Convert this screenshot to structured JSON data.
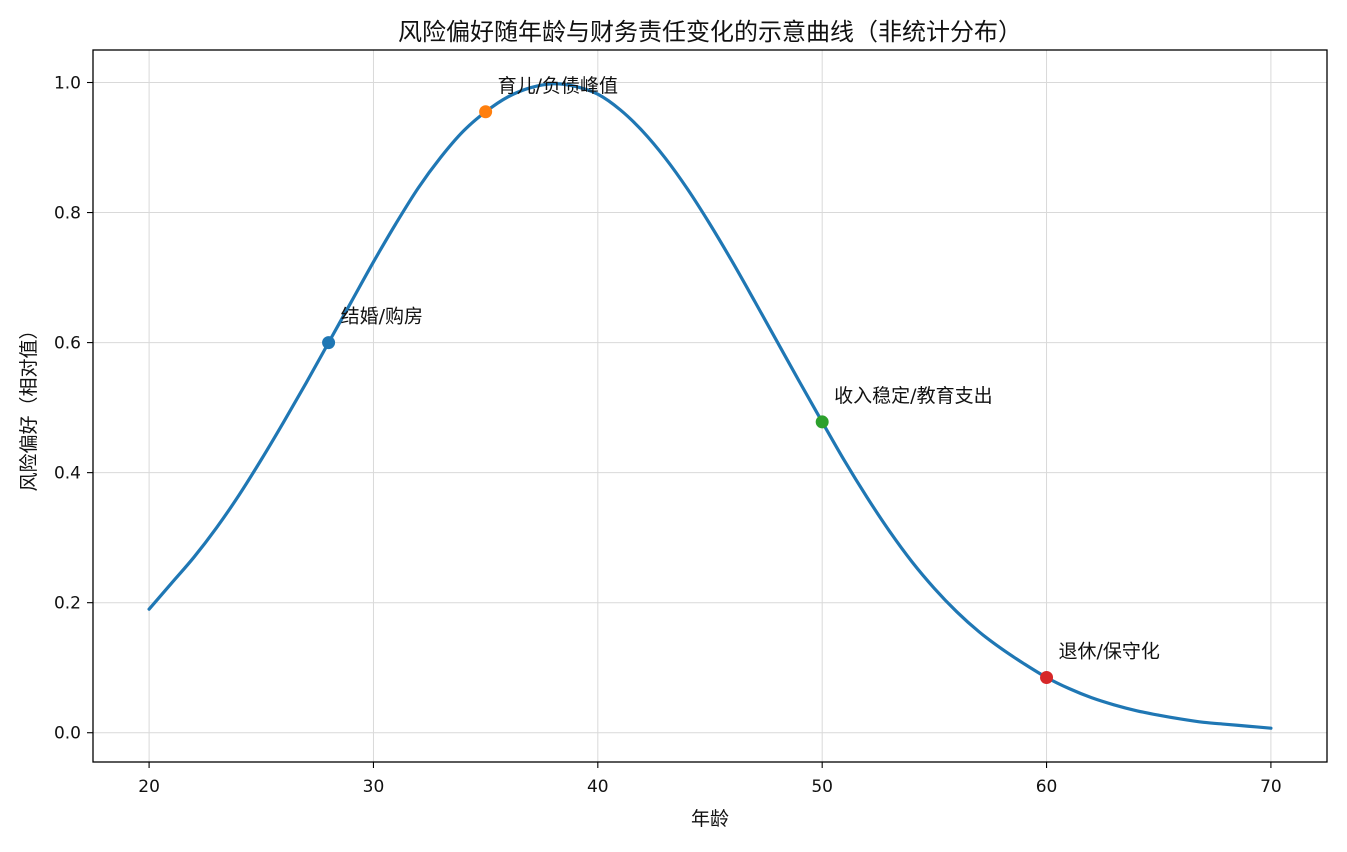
{
  "chart_data": {
    "type": "line",
    "title": "风险偏好随年龄与财务责任变化的示意曲线（非统计分布）",
    "xlabel": "年龄",
    "ylabel": "风险偏好（相对值）",
    "xlim": [
      17.5,
      72.5
    ],
    "ylim": [
      -0.045,
      1.05
    ],
    "xticks": [
      20,
      30,
      40,
      50,
      60,
      70
    ],
    "xtick_labels": [
      "20",
      "30",
      "40",
      "50",
      "60",
      "70"
    ],
    "yticks": [
      0.0,
      0.2,
      0.4,
      0.6,
      0.8,
      1.0
    ],
    "ytick_labels": [
      "0.0",
      "0.2",
      "0.4",
      "0.6",
      "0.8",
      "1.0"
    ],
    "grid": true,
    "series": [
      {
        "color": "#1f77b4",
        "x": [
          20,
          21,
          22,
          23,
          24,
          25,
          26,
          27,
          28,
          29,
          30,
          31,
          32,
          33,
          34,
          35,
          36,
          37,
          38,
          39,
          40,
          41,
          42,
          43,
          44,
          45,
          46,
          47,
          48,
          49,
          50,
          51,
          52,
          53,
          54,
          55,
          56,
          57,
          58,
          59,
          60,
          61,
          62,
          63,
          64,
          65,
          66,
          67,
          68,
          69,
          70
        ],
        "y": [
          0.19,
          0.23,
          0.27,
          0.315,
          0.365,
          0.42,
          0.478,
          0.538,
          0.6,
          0.662,
          0.724,
          0.783,
          0.838,
          0.885,
          0.925,
          0.955,
          0.978,
          0.992,
          0.998,
          0.994,
          0.982,
          0.958,
          0.925,
          0.884,
          0.836,
          0.782,
          0.724,
          0.663,
          0.601,
          0.539,
          0.478,
          0.418,
          0.362,
          0.31,
          0.263,
          0.222,
          0.186,
          0.155,
          0.129,
          0.106,
          0.085,
          0.068,
          0.054,
          0.043,
          0.034,
          0.027,
          0.021,
          0.016,
          0.013,
          0.01,
          0.007
        ]
      }
    ],
    "markers": [
      {
        "x": 28,
        "y": 0.6,
        "color": "#1f77b4",
        "label": "结婚/购房"
      },
      {
        "x": 35,
        "y": 0.955,
        "color": "#ff7f0e",
        "label": "育儿/负债峰值"
      },
      {
        "x": 50,
        "y": 0.478,
        "color": "#2ca02c",
        "label": "收入稳定/教育支出"
      },
      {
        "x": 60,
        "y": 0.085,
        "color": "#d62728",
        "label": "退休/保守化"
      }
    ]
  }
}
